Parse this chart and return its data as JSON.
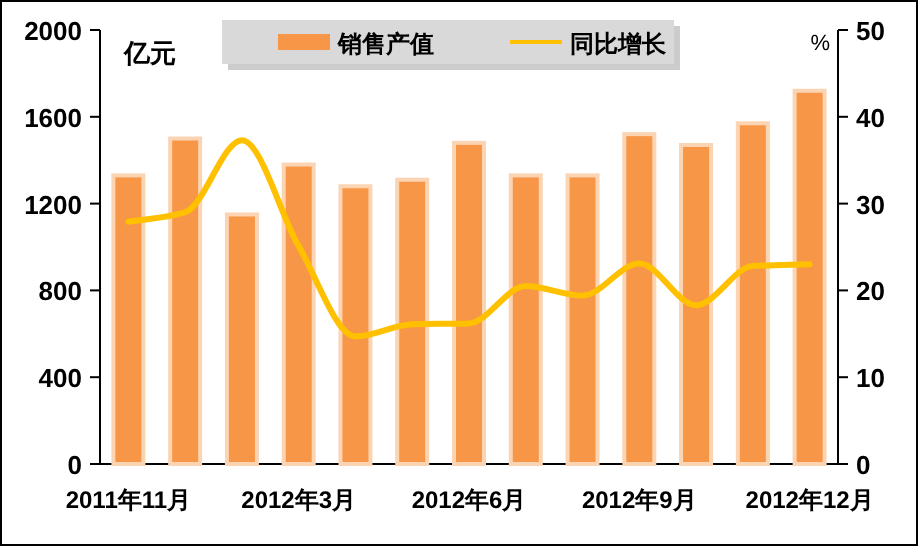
{
  "chart_data": {
    "type": "bar",
    "ylabel": "亿元",
    "y2label": "%",
    "categories": [
      "2011年11月",
      null,
      null,
      "2012年3月",
      null,
      null,
      "2012年6月",
      null,
      null,
      "2012年9月",
      null,
      null,
      "2012年12月"
    ],
    "series": [
      {
        "name": "销售产值",
        "color": "#f79646",
        "values": [
          1330,
          1500,
          1150,
          1380,
          1280,
          1310,
          1480,
          1330,
          1330,
          1520,
          1470,
          1570,
          1720
        ]
      },
      {
        "name": "同比增长",
        "type": "line",
        "axis": "y2",
        "color": "#ffc000",
        "values": [
          27.9,
          29.0,
          37.3,
          25.1,
          14.7,
          16.1,
          16.2,
          20.5,
          19.4,
          23.1,
          18.3,
          22.8,
          23.0
        ]
      }
    ],
    "ylim": [
      0,
      2000
    ],
    "yticks": [
      0,
      400,
      800,
      1200,
      1600,
      2000
    ],
    "y2lim": [
      0,
      50
    ],
    "y2ticks": [
      0,
      10,
      20,
      30,
      40,
      50
    ],
    "legend": "top",
    "grid": false,
    "marker": "none",
    "line_style": "solid"
  }
}
